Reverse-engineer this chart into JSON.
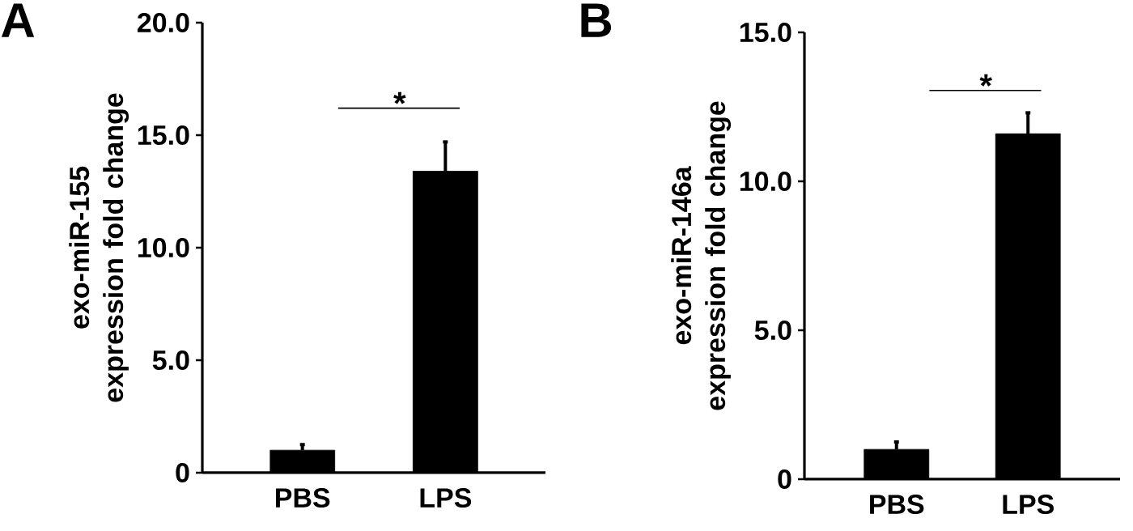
{
  "chart_data": [
    {
      "type": "bar",
      "categories": [
        "PBS",
        "LPS"
      ],
      "values": [
        1.0,
        13.4
      ],
      "errors": [
        0.25,
        1.3
      ],
      "color": "#000000",
      "ylabel": "exo-miR-155 expression fold change",
      "ylim": [
        0,
        20
      ],
      "yticks": [
        0,
        {
          "value": 5,
          "label": "5.0"
        },
        {
          "value": 10,
          "label": "10.0"
        },
        {
          "value": 15,
          "label": "15.0"
        },
        {
          "value": 20,
          "label": "20.0"
        }
      ],
      "annotations": [
        "A",
        "*"
      ]
    },
    {
      "type": "bar",
      "categories": [
        "PBS",
        "LPS"
      ],
      "values": [
        1.0,
        11.6
      ],
      "errors": [
        0.25,
        0.7
      ],
      "color": "#000000",
      "ylabel": "exo-miR-146a expression fold change",
      "ylim": [
        0,
        15
      ],
      "yticks": [
        0,
        {
          "value": 5,
          "label": "5.0"
        },
        {
          "value": 10,
          "label": "10.0"
        },
        {
          "value": 15,
          "label": "15.0"
        }
      ],
      "annotations": [
        "B",
        "*"
      ]
    }
  ]
}
